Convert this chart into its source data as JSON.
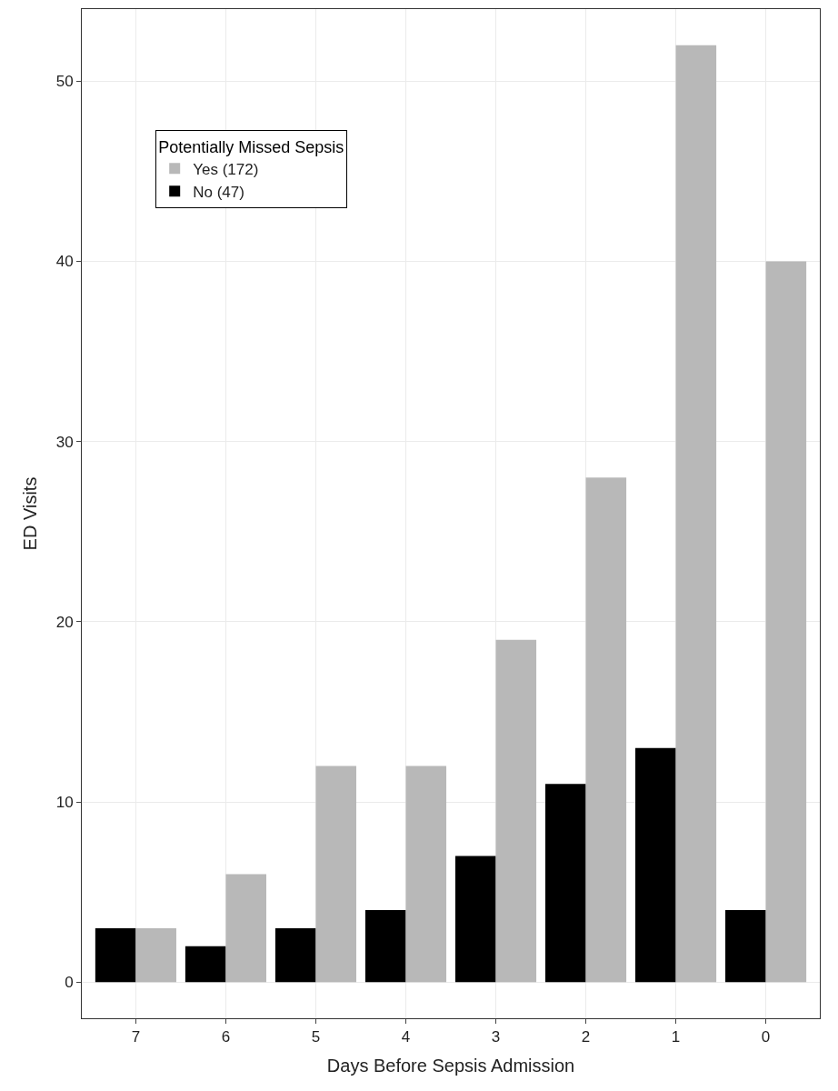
{
  "chart_data": {
    "type": "bar",
    "xlabel": "Days Before Sepsis Admission",
    "ylabel": "ED Visits",
    "legend_title": "Potentially Missed Sepsis",
    "categories": [
      "7",
      "6",
      "5",
      "4",
      "3",
      "2",
      "1",
      "0"
    ],
    "series": [
      {
        "name": "No (47)",
        "color": "#000000",
        "values": [
          3,
          2,
          3,
          4,
          7,
          11,
          13,
          4
        ]
      },
      {
        "name": "Yes (172)",
        "color": "#b8b8b8",
        "values": [
          3,
          6,
          12,
          12,
          19,
          28,
          52,
          40
        ]
      }
    ],
    "ylim": [
      -2,
      54
    ],
    "yticks": [
      0,
      10,
      20,
      30,
      40,
      50
    ],
    "grid": true,
    "legend": "top left"
  }
}
